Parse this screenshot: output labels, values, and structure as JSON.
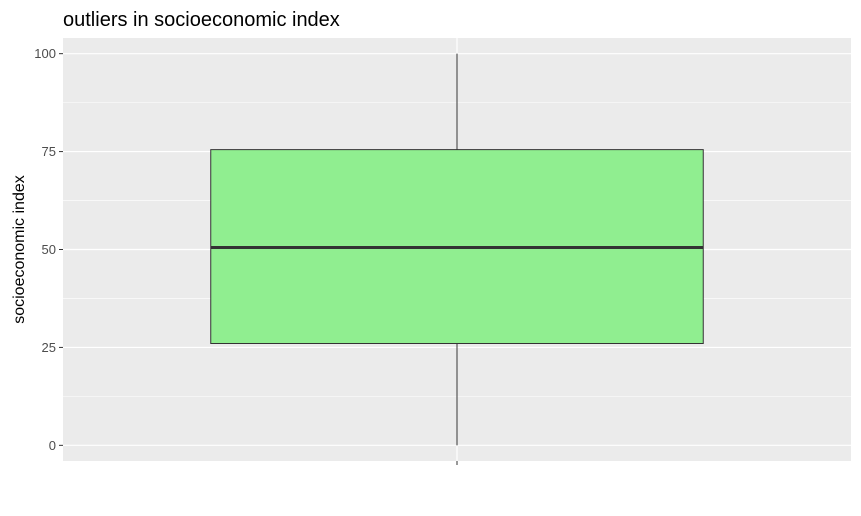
{
  "chart_data": {
    "type": "boxplot",
    "title": "outliers in socioeconomic index",
    "xlabel": "",
    "ylabel": "socioeconomic index",
    "ylim": [
      -4,
      104
    ],
    "y_ticks": [
      0,
      25,
      50,
      75,
      100
    ],
    "y_tick_labels": [
      "0",
      "25",
      "50",
      "75",
      "100"
    ],
    "grid": true,
    "legend": "none",
    "boxes": [
      {
        "min": 0,
        "q1": 26,
        "median": 50.5,
        "q3": 75.5,
        "max": 100,
        "outliers": []
      }
    ],
    "colors": {
      "panel_background": "#EBEBEB",
      "grid": "#FFFFFF",
      "box_fill": "#90EE90",
      "box_outline": "#333333",
      "median": "#333333",
      "tick_label": "#4D4D4D"
    }
  }
}
